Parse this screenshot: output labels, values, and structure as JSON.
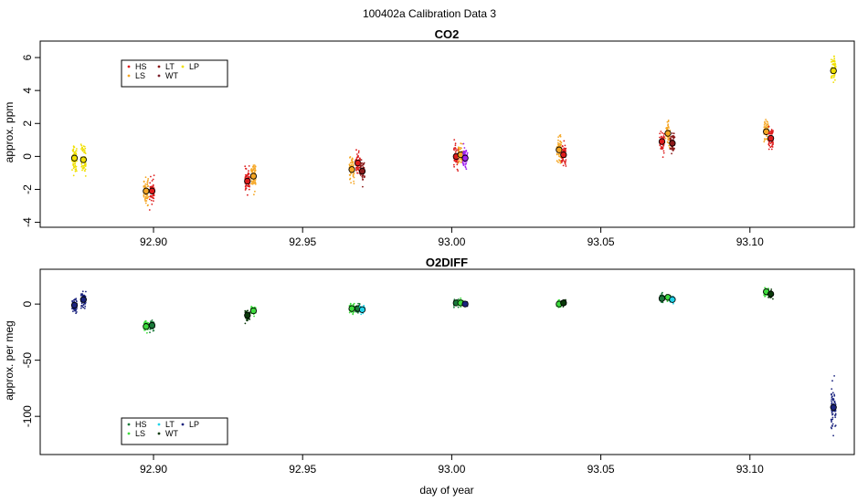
{
  "figure": {
    "title": "100402a   Calibration Data 3",
    "xlabel": "day of year"
  },
  "chart_data": [
    {
      "type": "scatter",
      "title": "CO2",
      "xlabel": "",
      "ylabel": "approx. ppm",
      "xlim": [
        92.862,
        93.135
      ],
      "ylim": [
        -4.3,
        7.0
      ],
      "xticks": [
        92.9,
        92.95,
        93.0,
        93.05,
        93.1
      ],
      "xtick_labels": [
        "92.90",
        "92.95",
        "93.00",
        "93.05",
        "93.10"
      ],
      "yticks": [
        -4,
        -2,
        0,
        2,
        4,
        6
      ],
      "ytick_labels": [
        "-4",
        "-2",
        "0",
        "2",
        "4",
        "6"
      ],
      "grid": false,
      "legend_position": "top-left",
      "legend": [
        {
          "name": "HS",
          "color": "#dd1c1c"
        },
        {
          "name": "LS",
          "color": "#f5a623"
        },
        {
          "name": "LT",
          "color": "#8b1a1a"
        },
        {
          "name": "WT",
          "color": "#7a1f2b"
        },
        {
          "name": "LP",
          "color": "#f0e000"
        }
      ],
      "series": [
        {
          "color": "#f0e000",
          "x": 92.8735,
          "mean": -0.1,
          "spread": 0.8
        },
        {
          "color": "#f0e000",
          "x": 92.8765,
          "mean": -0.2,
          "spread": 0.8
        },
        {
          "color": "#f5a623",
          "x": 92.8975,
          "mean": -2.1,
          "spread": 0.7
        },
        {
          "color": "#dd1c1c",
          "x": 92.8995,
          "mean": -2.1,
          "spread": 0.6
        },
        {
          "color": "#dd1c1c",
          "x": 92.9315,
          "mean": -1.5,
          "spread": 0.6
        },
        {
          "color": "#f5a623",
          "x": 92.9335,
          "mean": -1.2,
          "spread": 0.7
        },
        {
          "color": "#f5a623",
          "x": 92.9665,
          "mean": -0.8,
          "spread": 0.6
        },
        {
          "color": "#dd1c1c",
          "x": 92.9685,
          "mean": -0.4,
          "spread": 0.6
        },
        {
          "color": "#8b1a1a",
          "x": 92.97,
          "mean": -0.9,
          "spread": 0.6
        },
        {
          "color": "#dd1c1c",
          "x": 93.0015,
          "mean": 0.0,
          "spread": 0.6
        },
        {
          "color": "#f5a623",
          "x": 93.003,
          "mean": 0.1,
          "spread": 0.5
        },
        {
          "color": "#a020f0",
          "x": 93.0045,
          "mean": -0.1,
          "spread": 0.5
        },
        {
          "color": "#f5a623",
          "x": 93.036,
          "mean": 0.4,
          "spread": 0.7
        },
        {
          "color": "#dd1c1c",
          "x": 93.0375,
          "mean": 0.1,
          "spread": 0.6
        },
        {
          "color": "#dd1c1c",
          "x": 93.0705,
          "mean": 0.9,
          "spread": 0.6
        },
        {
          "color": "#f5a623",
          "x": 93.0725,
          "mean": 1.4,
          "spread": 0.6
        },
        {
          "color": "#8b1a1a",
          "x": 93.074,
          "mean": 0.8,
          "spread": 0.6
        },
        {
          "color": "#f5a623",
          "x": 93.1055,
          "mean": 1.5,
          "spread": 0.6
        },
        {
          "color": "#dd1c1c",
          "x": 93.107,
          "mean": 1.1,
          "spread": 0.6
        },
        {
          "color": "#f0e000",
          "x": 93.128,
          "mean": 5.2,
          "spread": 0.7
        }
      ]
    },
    {
      "type": "scatter",
      "title": "O2DIFF",
      "xlabel": "day of year",
      "ylabel": "approx. per meg",
      "xlim": [
        92.862,
        93.135
      ],
      "ylim": [
        -134,
        31
      ],
      "xticks": [
        92.9,
        92.95,
        93.0,
        93.05,
        93.1
      ],
      "xtick_labels": [
        "92.90",
        "92.95",
        "93.00",
        "93.05",
        "93.10"
      ],
      "yticks": [
        -100,
        -50,
        0
      ],
      "ytick_labels": [
        "-100",
        "-50",
        "0"
      ],
      "grid": false,
      "legend_position": "bottom-left",
      "legend": [
        {
          "name": "HS",
          "color": "#1a7a3a"
        },
        {
          "name": "LS",
          "color": "#3ddc3d"
        },
        {
          "name": "LT",
          "color": "#1fd3e8"
        },
        {
          "name": "WT",
          "color": "#0a3a0a"
        },
        {
          "name": "LP",
          "color": "#1a237e"
        }
      ],
      "series": [
        {
          "color": "#1a237e",
          "x": 92.8735,
          "mean": -1.0,
          "spread": 5
        },
        {
          "color": "#1a237e",
          "x": 92.8765,
          "mean": 4.0,
          "spread": 6
        },
        {
          "color": "#3ddc3d",
          "x": 92.8975,
          "mean": -20.0,
          "spread": 4
        },
        {
          "color": "#1a7a3a",
          "x": 92.8995,
          "mean": -19.0,
          "spread": 4
        },
        {
          "color": "#0a3a0a",
          "x": 92.9315,
          "mean": -10.0,
          "spread": 4
        },
        {
          "color": "#3ddc3d",
          "x": 92.9335,
          "mean": -6.0,
          "spread": 3
        },
        {
          "color": "#3ddc3d",
          "x": 92.9665,
          "mean": -4.0,
          "spread": 4
        },
        {
          "color": "#1a7a3a",
          "x": 92.9685,
          "mean": -4.0,
          "spread": 3
        },
        {
          "color": "#1fd3e8",
          "x": 92.97,
          "mean": -5.0,
          "spread": 3
        },
        {
          "color": "#1a7a3a",
          "x": 93.0015,
          "mean": 1.0,
          "spread": 3
        },
        {
          "color": "#3ddc3d",
          "x": 93.003,
          "mean": 1.0,
          "spread": 3
        },
        {
          "color": "#1a237e",
          "x": 93.0045,
          "mean": 0.0,
          "spread": 2
        },
        {
          "color": "#3ddc3d",
          "x": 93.036,
          "mean": 0.0,
          "spread": 3
        },
        {
          "color": "#0a3a0a",
          "x": 93.0375,
          "mean": 1.0,
          "spread": 2
        },
        {
          "color": "#1a7a3a",
          "x": 93.0705,
          "mean": 5.0,
          "spread": 3
        },
        {
          "color": "#3ddc3d",
          "x": 93.0725,
          "mean": 6.0,
          "spread": 3
        },
        {
          "color": "#1fd3e8",
          "x": 93.074,
          "mean": 4.0,
          "spread": 2
        },
        {
          "color": "#3ddc3d",
          "x": 93.1055,
          "mean": 11.0,
          "spread": 3
        },
        {
          "color": "#0a3a0a",
          "x": 93.107,
          "mean": 9.0,
          "spread": 3
        },
        {
          "color": "#1a237e",
          "x": 93.128,
          "mean": -92.0,
          "spread": 18
        }
      ]
    }
  ]
}
